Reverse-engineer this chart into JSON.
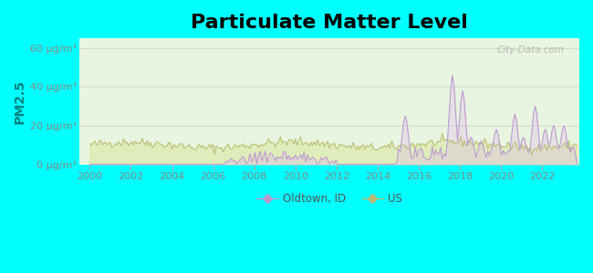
{
  "title": "Particulate Matter Level",
  "ylabel": "PM2.5",
  "xlabel": "",
  "background_color": "#00ffff",
  "ylim": [
    0,
    65
  ],
  "xlim_start": 1999.5,
  "xlim_end": 2023.8,
  "yticks": [
    0,
    20,
    40,
    60
  ],
  "ytick_labels": [
    "0 μg/m³",
    "20 μg/m³",
    "40 μg/m³",
    "60 μg/m³"
  ],
  "xticks": [
    2000,
    2002,
    2004,
    2006,
    2008,
    2010,
    2012,
    2014,
    2016,
    2018,
    2020,
    2022
  ],
  "oldtown_color": "#bb99cc",
  "us_color": "#bbbb77",
  "oldtown_fill": "#ddbbee",
  "us_fill": "#d8e8a0",
  "legend_oldtown": "Oldtown, ID",
  "legend_us": "US",
  "watermark": "City-Data.com",
  "title_fontsize": 16,
  "axis_label_fontsize": 9,
  "tick_fontsize": 8,
  "tick_color": "#888888",
  "ylabel_color": "#008080",
  "plot_bg": "#e8f5e0"
}
